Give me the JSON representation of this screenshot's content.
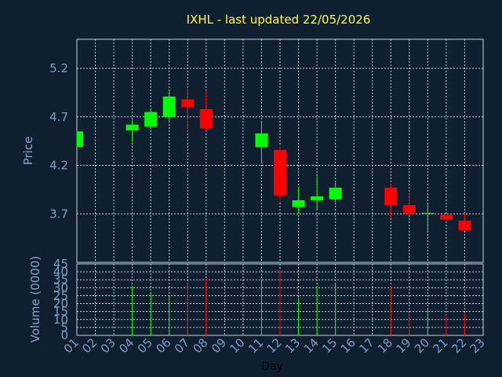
{
  "title": "IXHL - last updated 22/05/2026",
  "colors": {
    "background": "#0f1f30",
    "up": "#00ff00",
    "down": "#ff0000",
    "axis_text": "#7f9ec2",
    "title": "#ffff2a"
  },
  "chart_data": [
    {
      "type": "candlestick",
      "title": "IXHL - last updated 22/05/2026",
      "xlabel": "Day",
      "ylabel": "Price",
      "x": [
        "01",
        "02",
        "03",
        "04",
        "05",
        "06",
        "07",
        "08",
        "09",
        "10",
        "11",
        "12",
        "13",
        "14",
        "15",
        "16",
        "17",
        "18",
        "19",
        "20",
        "21",
        "22",
        "23"
      ],
      "ylim": [
        3.2,
        5.5
      ],
      "yticks": [
        3.7,
        4.2,
        4.7,
        5.2
      ],
      "ytick_labels": [
        "3.7",
        "4.2",
        "4.7",
        "5.2"
      ],
      "grid": true,
      "candles": [
        {
          "day": "01",
          "open": 4.39,
          "high": 4.55,
          "low": 4.39,
          "close": 4.55
        },
        {
          "day": "04",
          "open": 4.56,
          "high": 4.67,
          "low": 4.43,
          "close": 4.62
        },
        {
          "day": "05",
          "open": 4.6,
          "high": 4.79,
          "low": 4.58,
          "close": 4.75
        },
        {
          "day": "06",
          "open": 4.7,
          "high": 4.97,
          "low": 4.65,
          "close": 4.91
        },
        {
          "day": "07",
          "open": 4.88,
          "high": 5.0,
          "low": 4.55,
          "close": 4.8
        },
        {
          "day": "08",
          "open": 4.78,
          "high": 4.97,
          "low": 4.55,
          "close": 4.58
        },
        {
          "day": "11",
          "open": 4.39,
          "high": 4.66,
          "low": 4.22,
          "close": 4.53
        },
        {
          "day": "12",
          "open": 4.36,
          "high": 4.4,
          "low": 3.82,
          "close": 3.89
        },
        {
          "day": "13",
          "open": 3.77,
          "high": 3.98,
          "low": 3.7,
          "close": 3.84
        },
        {
          "day": "14",
          "open": 3.84,
          "high": 4.09,
          "low": 3.75,
          "close": 3.88
        },
        {
          "day": "15",
          "open": 3.85,
          "high": 4.04,
          "low": 3.82,
          "close": 3.97
        },
        {
          "day": "18",
          "open": 3.97,
          "high": 4.01,
          "low": 3.65,
          "close": 3.79
        },
        {
          "day": "19",
          "open": 3.79,
          "high": 3.92,
          "low": 3.69,
          "close": 3.7
        },
        {
          "day": "20",
          "open": 3.7,
          "high": 3.8,
          "low": 3.51,
          "close": 3.71
        },
        {
          "day": "21",
          "open": 3.69,
          "high": 3.7,
          "low": 3.63,
          "close": 3.64
        },
        {
          "day": "22",
          "open": 3.63,
          "high": 3.71,
          "low": 3.53,
          "close": 3.53
        }
      ]
    },
    {
      "type": "bar",
      "xlabel": "Day",
      "ylabel": "Volume (0000)",
      "x": [
        "01",
        "02",
        "03",
        "04",
        "05",
        "06",
        "07",
        "08",
        "09",
        "10",
        "11",
        "12",
        "13",
        "14",
        "15",
        "16",
        "17",
        "18",
        "19",
        "20",
        "21",
        "22",
        "23"
      ],
      "ylim": [
        0,
        45
      ],
      "yticks": [
        0,
        5,
        10,
        15,
        20,
        25,
        30,
        35,
        40,
        45
      ],
      "ytick_labels": [
        "0",
        "5",
        "10",
        "15",
        "20",
        "25",
        "30",
        "35",
        "40",
        "45"
      ],
      "grid": true,
      "bars": [
        {
          "day": "04",
          "value": 31,
          "direction": "up"
        },
        {
          "day": "05",
          "value": 27,
          "direction": "up"
        },
        {
          "day": "06",
          "value": 25,
          "direction": "up"
        },
        {
          "day": "07",
          "value": 33,
          "direction": "down"
        },
        {
          "day": "08",
          "value": 36,
          "direction": "down"
        },
        {
          "day": "11",
          "value": 35,
          "direction": "up"
        },
        {
          "day": "12",
          "value": 42,
          "direction": "down"
        },
        {
          "day": "13",
          "value": 24,
          "direction": "up"
        },
        {
          "day": "14",
          "value": 31,
          "direction": "up"
        },
        {
          "day": "15",
          "value": 33,
          "direction": "up"
        },
        {
          "day": "18",
          "value": 31,
          "direction": "down"
        },
        {
          "day": "19",
          "value": 14,
          "direction": "down"
        },
        {
          "day": "20",
          "value": 17,
          "direction": "up"
        },
        {
          "day": "21",
          "value": 13,
          "direction": "down"
        },
        {
          "day": "22",
          "value": 14,
          "direction": "down"
        }
      ]
    }
  ]
}
